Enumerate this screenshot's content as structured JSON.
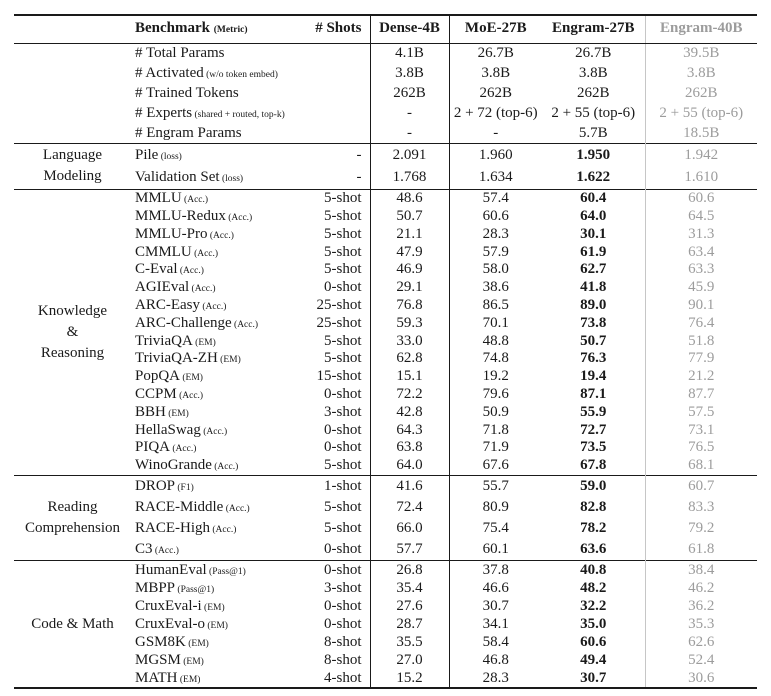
{
  "table": {
    "header": {
      "benchmark_label": "Benchmark",
      "metric_label": "(Metric)",
      "shots_label": "# Shots",
      "models": [
        "Dense-4B",
        "MoE-27B",
        "Engram-27B",
        "Engram-40B"
      ]
    },
    "colors": {
      "text": "#1a1a1a",
      "muted_text": "#9c9c9c",
      "muted_line": "#c6c6c6"
    },
    "sections": [
      {
        "id": "params",
        "group_lines": [],
        "values_bold": false,
        "rows": [
          {
            "name": "# Total Params",
            "metric": "",
            "shots": "",
            "values": [
              "4.1B",
              "26.7B",
              "26.7B",
              "39.5B"
            ]
          },
          {
            "name": "# Activated",
            "metric": "(w/o token embed)",
            "shots": "",
            "values": [
              "3.8B",
              "3.8B",
              "3.8B",
              "3.8B"
            ]
          },
          {
            "name": "# Trained Tokens",
            "metric": "",
            "shots": "",
            "values": [
              "262B",
              "262B",
              "262B",
              "262B"
            ]
          },
          {
            "name": "# Experts",
            "metric": "(shared + routed, top-k)",
            "shots": "",
            "values": [
              "-",
              "2 + 72 (top-6)",
              "2 + 55 (top-6)",
              "2 + 55 (top-6)"
            ]
          },
          {
            "name": "# Engram Params",
            "metric": "",
            "shots": "",
            "values": [
              "-",
              "-",
              "5.7B",
              "18.5B"
            ]
          }
        ]
      },
      {
        "id": "lm",
        "group_lines": [
          "Language",
          "Modeling"
        ],
        "values_bold": true,
        "rows": [
          {
            "name": "Pile",
            "metric": "(loss)",
            "shots": "-",
            "values": [
              "2.091",
              "1.960",
              "1.950",
              "1.942"
            ]
          },
          {
            "name": "Validation Set",
            "metric": "(loss)",
            "shots": "-",
            "values": [
              "1.768",
              "1.634",
              "1.622",
              "1.610"
            ]
          }
        ]
      },
      {
        "id": "kr",
        "group_lines": [
          "Knowledge",
          "&",
          "Reasoning"
        ],
        "values_bold": true,
        "rows": [
          {
            "name": "MMLU",
            "metric": "(Acc.)",
            "shots": "5-shot",
            "values": [
              "48.6",
              "57.4",
              "60.4",
              "60.6"
            ]
          },
          {
            "name": "MMLU-Redux",
            "metric": "(Acc.)",
            "shots": "5-shot",
            "values": [
              "50.7",
              "60.6",
              "64.0",
              "64.5"
            ]
          },
          {
            "name": "MMLU-Pro",
            "metric": "(Acc.)",
            "shots": "5-shot",
            "values": [
              "21.1",
              "28.3",
              "30.1",
              "31.3"
            ]
          },
          {
            "name": "CMMLU",
            "metric": "(Acc.)",
            "shots": "5-shot",
            "values": [
              "47.9",
              "57.9",
              "61.9",
              "63.4"
            ]
          },
          {
            "name": "C-Eval",
            "metric": "(Acc.)",
            "shots": "5-shot",
            "values": [
              "46.9",
              "58.0",
              "62.7",
              "63.3"
            ]
          },
          {
            "name": "AGIEval",
            "metric": "(Acc.)",
            "shots": "0-shot",
            "values": [
              "29.1",
              "38.6",
              "41.8",
              "45.9"
            ]
          },
          {
            "name": "ARC-Easy",
            "metric": "(Acc.)",
            "shots": "25-shot",
            "values": [
              "76.8",
              "86.5",
              "89.0",
              "90.1"
            ]
          },
          {
            "name": "ARC-Challenge",
            "metric": "(Acc.)",
            "shots": "25-shot",
            "values": [
              "59.3",
              "70.1",
              "73.8",
              "76.4"
            ]
          },
          {
            "name": "TriviaQA",
            "metric": "(EM)",
            "shots": "5-shot",
            "values": [
              "33.0",
              "48.8",
              "50.7",
              "51.8"
            ]
          },
          {
            "name": "TriviaQA-ZH",
            "metric": "(EM)",
            "shots": "5-shot",
            "values": [
              "62.8",
              "74.8",
              "76.3",
              "77.9"
            ]
          },
          {
            "name": "PopQA",
            "metric": "(EM)",
            "shots": "15-shot",
            "values": [
              "15.1",
              "19.2",
              "19.4",
              "21.2"
            ]
          },
          {
            "name": "CCPM",
            "metric": "(Acc.)",
            "shots": "0-shot",
            "values": [
              "72.2",
              "79.6",
              "87.1",
              "87.7"
            ]
          },
          {
            "name": "BBH",
            "metric": "(EM)",
            "shots": "3-shot",
            "values": [
              "42.8",
              "50.9",
              "55.9",
              "57.5"
            ]
          },
          {
            "name": "HellaSwag",
            "metric": "(Acc.)",
            "shots": "0-shot",
            "values": [
              "64.3",
              "71.8",
              "72.7",
              "73.1"
            ]
          },
          {
            "name": "PIQA",
            "metric": "(Acc.)",
            "shots": "0-shot",
            "values": [
              "63.8",
              "71.9",
              "73.5",
              "76.5"
            ]
          },
          {
            "name": "WinoGrande",
            "metric": "(Acc.)",
            "shots": "5-shot",
            "values": [
              "64.0",
              "67.6",
              "67.8",
              "68.1"
            ]
          }
        ]
      },
      {
        "id": "rc",
        "group_lines": [
          "Reading",
          "Comprehension"
        ],
        "values_bold": true,
        "rows": [
          {
            "name": "DROP",
            "metric": "(F1)",
            "shots": "1-shot",
            "values": [
              "41.6",
              "55.7",
              "59.0",
              "60.7"
            ]
          },
          {
            "name": "RACE-Middle",
            "metric": "(Acc.)",
            "shots": "5-shot",
            "values": [
              "72.4",
              "80.9",
              "82.8",
              "83.3"
            ]
          },
          {
            "name": "RACE-High",
            "metric": "(Acc.)",
            "shots": "5-shot",
            "values": [
              "66.0",
              "75.4",
              "78.2",
              "79.2"
            ]
          },
          {
            "name": "C3",
            "metric": "(Acc.)",
            "shots": "0-shot",
            "values": [
              "57.7",
              "60.1",
              "63.6",
              "61.8"
            ]
          }
        ]
      },
      {
        "id": "cm",
        "group_lines": [
          "Code & Math"
        ],
        "values_bold": true,
        "rows": [
          {
            "name": "HumanEval",
            "metric": "(Pass@1)",
            "shots": "0-shot",
            "values": [
              "26.8",
              "37.8",
              "40.8",
              "38.4"
            ]
          },
          {
            "name": "MBPP",
            "metric": "(Pass@1)",
            "shots": "3-shot",
            "values": [
              "35.4",
              "46.6",
              "48.2",
              "46.2"
            ]
          },
          {
            "name": "CruxEval-i",
            "metric": "(EM)",
            "shots": "0-shot",
            "values": [
              "27.6",
              "30.7",
              "32.2",
              "36.2"
            ]
          },
          {
            "name": "CruxEval-o",
            "metric": "(EM)",
            "shots": "0-shot",
            "values": [
              "28.7",
              "34.1",
              "35.0",
              "35.3"
            ]
          },
          {
            "name": "GSM8K",
            "metric": "(EM)",
            "shots": "8-shot",
            "values": [
              "35.5",
              "58.4",
              "60.6",
              "62.6"
            ]
          },
          {
            "name": "MGSM",
            "metric": "(EM)",
            "shots": "8-shot",
            "values": [
              "27.0",
              "46.8",
              "49.4",
              "52.4"
            ]
          },
          {
            "name": "MATH",
            "metric": "(EM)",
            "shots": "4-shot",
            "values": [
              "15.2",
              "28.3",
              "30.7",
              "30.6"
            ]
          }
        ]
      }
    ]
  }
}
